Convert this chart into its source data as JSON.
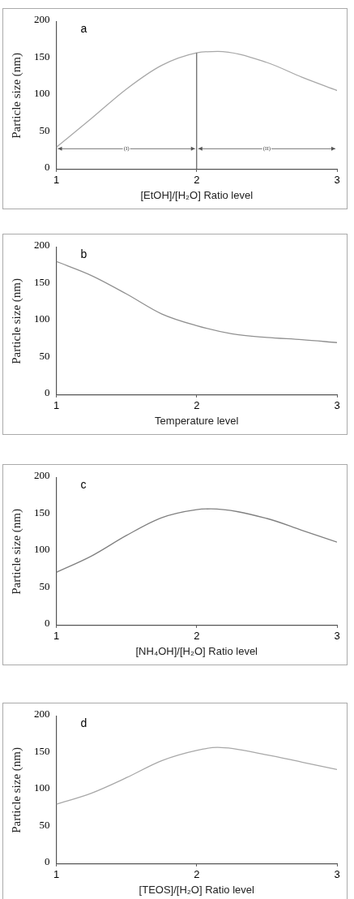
{
  "chart_data": [
    {
      "type": "line",
      "title": "a",
      "xlabel": "[EtOH]/[H₂O] Ratio level",
      "ylabel": "Particle size (nm)",
      "x": [
        1,
        1.25,
        1.5,
        1.75,
        2,
        2.15,
        2.5,
        2.75,
        3
      ],
      "series": [
        {
          "color": "#a8a8a8",
          "values": [
            30,
            69,
            109,
            141,
            158,
            160,
            145,
            125,
            107
          ]
        }
      ],
      "xlim": [
        1,
        3
      ],
      "ylim": [
        0,
        200
      ],
      "xticks": [
        1,
        2,
        3
      ],
      "yticks": [
        0,
        50,
        100,
        150,
        200
      ],
      "ref_lines": [
        {
          "axis": "x",
          "value": 2,
          "color": "#606060"
        }
      ],
      "annotations": [
        "(I)",
        "(II)"
      ]
    },
    {
      "type": "line",
      "title": "b",
      "xlabel": "Temperature level",
      "ylabel": "Particle size (nm)",
      "x": [
        1,
        1.25,
        1.5,
        1.75,
        2,
        2.25,
        2.5,
        2.75,
        3
      ],
      "series": [
        {
          "color": "#909090",
          "values": [
            181,
            162,
            137,
            110,
            94,
            83,
            78,
            75,
            71
          ]
        }
      ],
      "xlim": [
        1,
        3
      ],
      "ylim": [
        0,
        200
      ],
      "xticks": [
        1,
        2,
        3
      ],
      "yticks": [
        0,
        50,
        100,
        150,
        200
      ]
    },
    {
      "type": "line",
      "title": "c",
      "xlabel": "[NH₄OH]/[H₂O] Ratio level",
      "ylabel": "Particle size (nm)",
      "x": [
        1,
        1.25,
        1.5,
        1.75,
        2,
        2.1,
        2.5,
        2.75,
        3
      ],
      "series": [
        {
          "color": "#808080",
          "values": [
            72,
            94,
            122,
            146,
            157,
            158,
            145,
            129,
            113
          ]
        }
      ],
      "xlim": [
        1,
        3
      ],
      "ylim": [
        0,
        200
      ],
      "xticks": [
        1,
        2,
        3
      ],
      "yticks": [
        0,
        50,
        100,
        150,
        200
      ]
    },
    {
      "type": "line",
      "title": "d",
      "xlabel": "[TEOS]/[H₂O] Ratio level",
      "ylabel": "Particle size (nm)",
      "x": [
        1,
        1.25,
        1.5,
        1.75,
        2,
        2.15,
        2.5,
        2.75,
        3
      ],
      "series": [
        {
          "color": "#a8a8a8",
          "values": [
            81,
            96,
            117,
            140,
            154,
            158,
            148,
            138,
            128
          ]
        }
      ],
      "xlim": [
        1,
        3
      ],
      "ylim": [
        0,
        200
      ],
      "xticks": [
        1,
        2,
        3
      ],
      "yticks": [
        0,
        50,
        100,
        150,
        200
      ]
    }
  ]
}
